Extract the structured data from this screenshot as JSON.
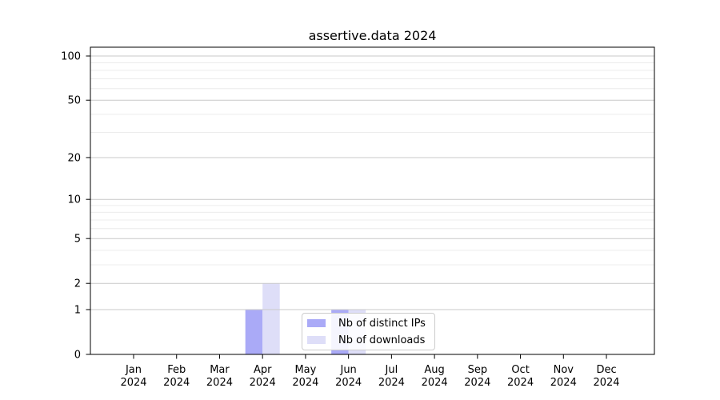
{
  "title": "assertive.data 2024",
  "chart_data": {
    "type": "bar",
    "title": "assertive.data 2024",
    "categories": [
      "Jan",
      "Feb",
      "Mar",
      "Apr",
      "May",
      "Jun",
      "Jul",
      "Aug",
      "Sep",
      "Oct",
      "Nov",
      "Dec"
    ],
    "year_label": "2024",
    "series": [
      {
        "name": "Nb of distinct IPs",
        "color": "#aaaaf7",
        "values": [
          0,
          0,
          0,
          1,
          0,
          1,
          0,
          0,
          0,
          0,
          0,
          0
        ]
      },
      {
        "name": "Nb of downloads",
        "color": "#dedef8",
        "values": [
          0,
          0,
          0,
          2,
          0,
          1,
          0,
          0,
          0,
          0,
          0,
          0
        ]
      }
    ],
    "xlabel": "",
    "ylabel": "",
    "yscale": "log1p",
    "ylim": [
      0,
      100
    ],
    "y_major_ticks": [
      0,
      1,
      2,
      5,
      10,
      20,
      50,
      100
    ],
    "y_minor_gridlines": [
      3,
      4,
      6,
      7,
      8,
      9,
      30,
      40,
      60,
      70,
      80,
      90
    ],
    "grid": "horizontal",
    "legend_position": "inside-bottom-center"
  },
  "colors": {
    "bar_distinct_ips": "#aaaaf7",
    "bar_downloads": "#dedef8",
    "major_grid": "#c9c9c9",
    "minor_grid": "#ececec",
    "axis": "#000000",
    "legend_border": "#cccccc",
    "text": "#000000"
  }
}
